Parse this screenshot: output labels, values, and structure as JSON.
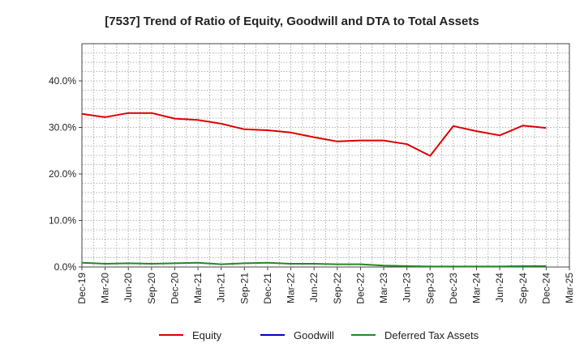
{
  "chart_data": {
    "type": "line",
    "title": "[7537]  Trend of Ratio of Equity, Goodwill and DTA to Total Assets",
    "xlabel": "",
    "ylabel": "",
    "ylim": [
      0,
      48
    ],
    "y_ticks": [
      0,
      10,
      20,
      30,
      40
    ],
    "y_tick_labels": [
      "0.0%",
      "10.0%",
      "20.0%",
      "30.0%",
      "40.0%"
    ],
    "categories": [
      "Dec-19",
      "Mar-20",
      "Jun-20",
      "Sep-20",
      "Dec-20",
      "Mar-21",
      "Jun-21",
      "Sep-21",
      "Dec-21",
      "Mar-22",
      "Jun-22",
      "Sep-22",
      "Dec-22",
      "Mar-23",
      "Jun-23",
      "Sep-23",
      "Dec-23",
      "Mar-24",
      "Jun-24",
      "Sep-24",
      "Dec-24",
      "Mar-25"
    ],
    "grid": true,
    "legend_position": "bottom",
    "series": [
      {
        "name": "Equity",
        "color": "#dd0000",
        "values": [
          32.9,
          32.2,
          33.1,
          33.1,
          31.9,
          31.6,
          30.8,
          29.6,
          29.4,
          28.9,
          27.9,
          27.0,
          27.2,
          27.2,
          26.4,
          23.9,
          30.3,
          29.2,
          28.3,
          30.4,
          29.9,
          null
        ]
      },
      {
        "name": "Goodwill",
        "color": "#0000cc",
        "values": [
          null,
          null,
          null,
          null,
          null,
          null,
          null,
          null,
          null,
          null,
          null,
          null,
          null,
          null,
          null,
          null,
          null,
          null,
          null,
          null,
          null,
          null
        ]
      },
      {
        "name": "Deferred Tax Assets",
        "color": "#228822",
        "values": [
          0.9,
          0.7,
          0.8,
          0.7,
          0.8,
          0.9,
          0.6,
          0.8,
          0.9,
          0.7,
          0.7,
          0.6,
          0.6,
          0.3,
          0.2,
          0.1,
          0.1,
          0.1,
          0.1,
          0.2,
          0.2,
          null
        ]
      }
    ]
  }
}
